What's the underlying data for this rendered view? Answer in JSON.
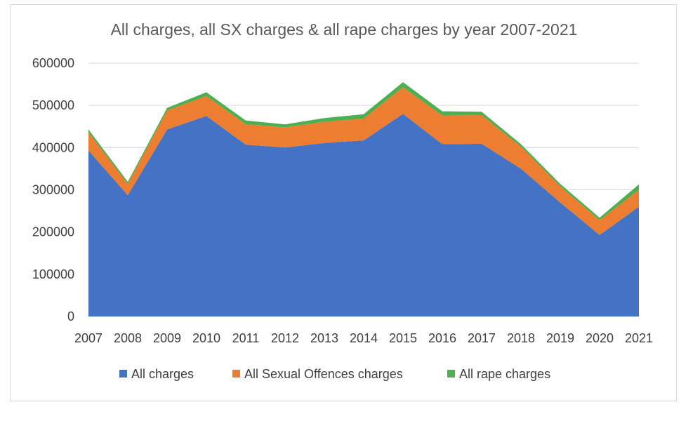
{
  "chart_data": {
    "type": "area",
    "stacked": true,
    "title": "All charges, all SX charges & all rape charges by year 2007-2021",
    "xlabel": "",
    "ylabel": "",
    "categories": [
      "2007",
      "2008",
      "2009",
      "2010",
      "2011",
      "2012",
      "2013",
      "2014",
      "2015",
      "2016",
      "2017",
      "2018",
      "2019",
      "2020",
      "2021"
    ],
    "ylim": [
      0,
      600000
    ],
    "yticks": [
      "0",
      "100000",
      "200000",
      "300000",
      "400000",
      "500000",
      "600000"
    ],
    "grid": true,
    "legend_position": "bottom",
    "series": [
      {
        "name": "All charges",
        "color": "#4472c4",
        "values": [
          393000,
          287000,
          443000,
          475000,
          407000,
          400000,
          411000,
          417000,
          480000,
          408000,
          409000,
          350000,
          270000,
          193000,
          260000
        ]
      },
      {
        "name": "All Sexual Offences charges",
        "color": "#ed7d31",
        "values": [
          43000,
          27000,
          45000,
          47000,
          48000,
          48000,
          50000,
          52000,
          63000,
          68000,
          68000,
          52000,
          38000,
          35000,
          40000
        ]
      },
      {
        "name": "All rape charges",
        "color": "#4caf50",
        "values": [
          7000,
          5000,
          6000,
          9000,
          9000,
          7000,
          9000,
          10000,
          12000,
          10000,
          8000,
          6000,
          6000,
          6000,
          13000
        ]
      }
    ]
  }
}
